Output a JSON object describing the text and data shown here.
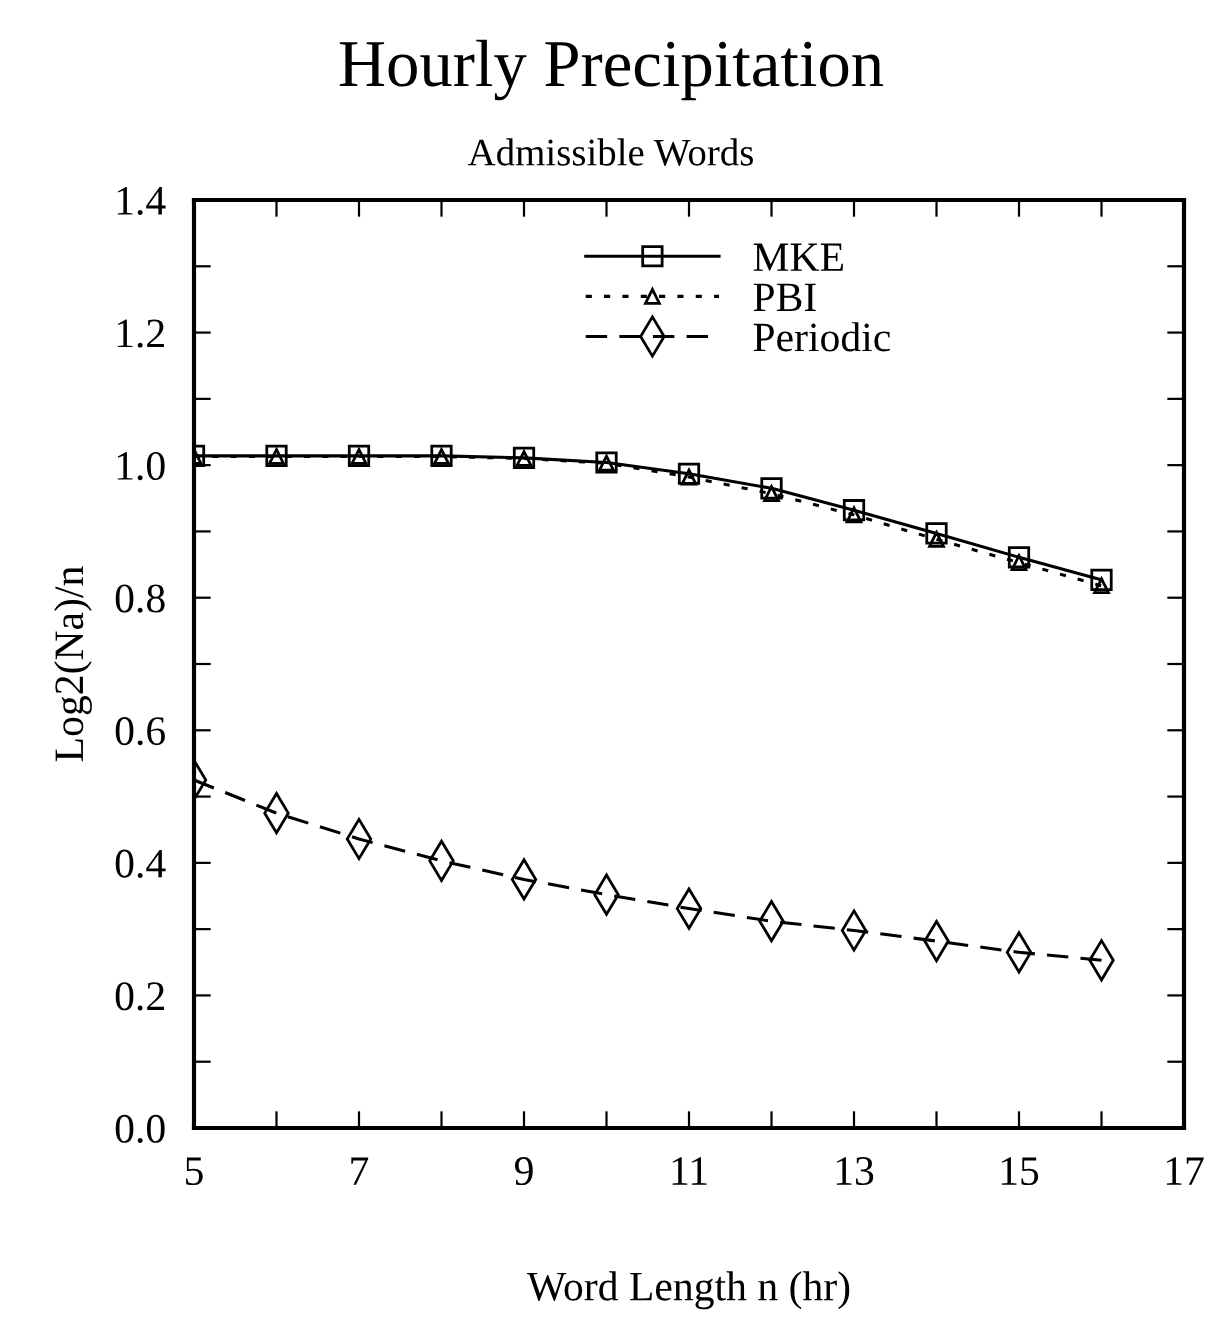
{
  "chart_data": {
    "type": "line",
    "title": "Hourly Precipitation",
    "subtitle": "Admissible Words",
    "xlabel": "Word Length n (hr)",
    "ylabel": "Log2(Na)/n",
    "x": [
      5,
      6,
      7,
      8,
      9,
      10,
      11,
      12,
      13,
      14,
      15,
      16
    ],
    "series": [
      {
        "name": "MKE",
        "color": "#000000",
        "marker": "square",
        "line_style": "solid",
        "values": [
          1.014,
          1.014,
          1.014,
          1.014,
          1.011,
          1.004,
          0.987,
          0.965,
          0.932,
          0.897,
          0.861,
          0.827
        ]
      },
      {
        "name": "PBI",
        "color": "#000000",
        "marker": "triangle",
        "line_style": "dotted",
        "values": [
          1.013,
          1.013,
          1.013,
          1.013,
          1.01,
          1.003,
          0.982,
          0.957,
          0.925,
          0.888,
          0.853,
          0.818
        ]
      },
      {
        "name": "Periodic",
        "color": "#000000",
        "marker": "diamond",
        "line_style": "dashed",
        "values": [
          0.525,
          0.475,
          0.436,
          0.403,
          0.375,
          0.352,
          0.331,
          0.312,
          0.298,
          0.282,
          0.265,
          0.253
        ]
      }
    ],
    "xlim": [
      5,
      17
    ],
    "xticks": [
      5,
      {
        "value": 6,
        "label": null
      },
      7,
      {
        "value": 8,
        "label": null
      },
      9,
      {
        "value": 10,
        "label": null
      },
      11,
      {
        "value": 12,
        "label": null
      },
      13,
      {
        "value": 14,
        "label": null
      },
      15,
      {
        "value": 16,
        "label": null
      },
      17
    ],
    "ylim": [
      0.0,
      1.4
    ],
    "yticks": [
      {
        "value": 0,
        "label": "0.0"
      },
      {
        "value": 0.1,
        "label": null
      },
      0.2,
      {
        "value": 0.3,
        "label": null
      },
      0.4,
      {
        "value": 0.5,
        "label": null
      },
      0.6,
      {
        "value": 0.7,
        "label": null
      },
      0.8,
      {
        "value": 0.9,
        "label": null
      },
      {
        "value": 1.0,
        "label": "1.0"
      },
      {
        "value": 1.1,
        "label": null
      },
      1.2,
      {
        "value": 1.3,
        "label": null
      },
      1.4
    ],
    "grid": false,
    "legend": "top"
  }
}
